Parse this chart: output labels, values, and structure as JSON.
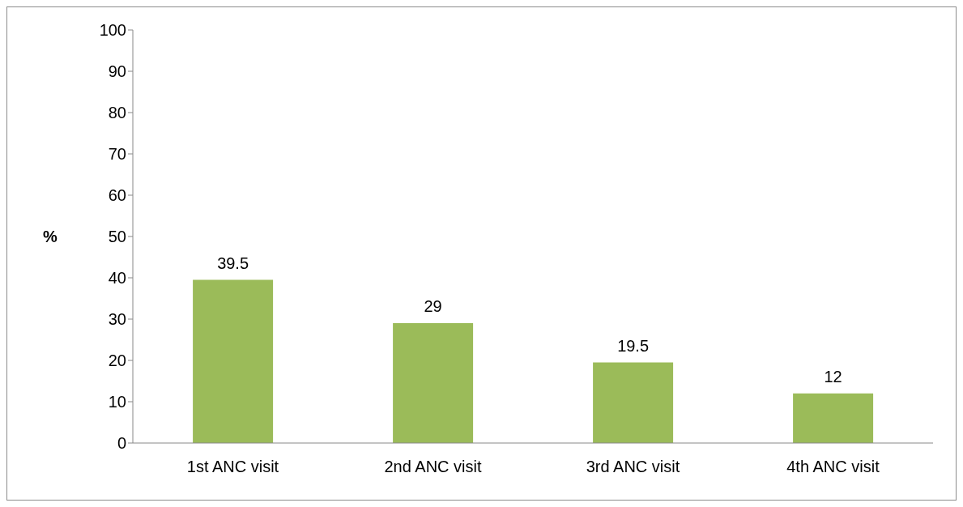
{
  "chart_data": {
    "type": "bar",
    "ylabel": "%",
    "categories": [
      "1st ANC visit",
      "2nd ANC visit",
      "3rd ANC visit",
      "4th ANC visit"
    ],
    "series": [
      {
        "color": "#9bbb59",
        "values": [
          39.5,
          29,
          19.5,
          12
        ]
      }
    ],
    "ylim": [
      0,
      100
    ],
    "yticks": [
      0,
      10,
      20,
      30,
      40,
      50,
      60,
      70,
      80,
      90,
      100
    ],
    "data_labels": true,
    "grid": false,
    "legend": false
  }
}
